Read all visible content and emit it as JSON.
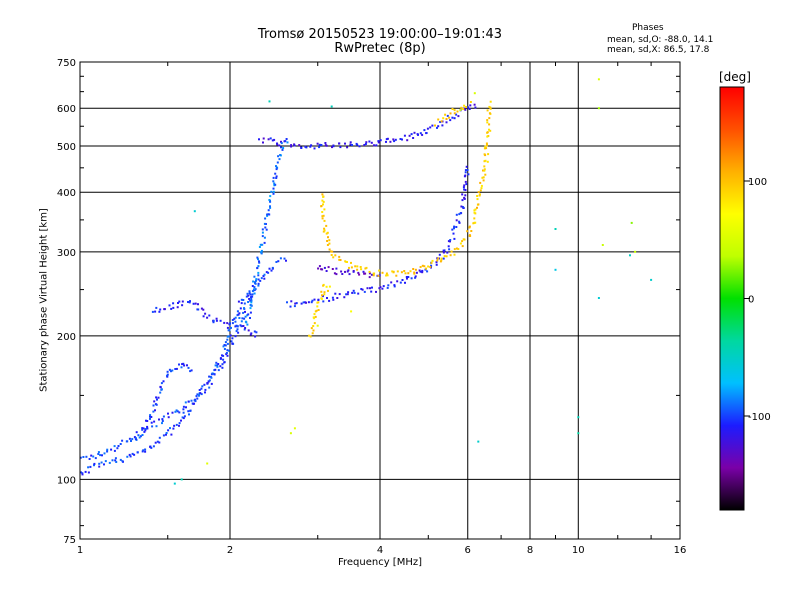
{
  "header": {
    "title": "Tromsø 20150523 19:00:00–19:01:43",
    "subtitle": "RwPretec (8p)"
  },
  "stats": {
    "title": "Phases",
    "o_mode": "mean, sd,O: -88.0, 14.1",
    "x_mode": "mean, sd,X:  86.5, 17.8"
  },
  "colorbar": {
    "label": "[deg]",
    "range": [
      -180,
      180
    ],
    "ticks": [
      -100,
      0,
      100
    ],
    "colors": [
      "#000000",
      "#7a00a8",
      "#1c1cff",
      "#00c0ff",
      "#00d8a0",
      "#00e000",
      "#bfff00",
      "#ffff00",
      "#ffb000",
      "#ff5000",
      "#ff0000"
    ]
  },
  "chart_data": {
    "type": "scatter",
    "title": "Tromsø 20150523 19:00:00–19:01:43",
    "subtitle": "RwPretec (8p)",
    "xlabel": "Frequency [MHz]",
    "ylabel": "Stationary phase Virtual Height [km]",
    "x_scale": "log",
    "y_scale": "log",
    "xlim": [
      1,
      16
    ],
    "ylim": [
      75,
      750
    ],
    "x_ticks": [
      1,
      2,
      4,
      6,
      8,
      10,
      16
    ],
    "x_grid": [
      2,
      4,
      6,
      8,
      10
    ],
    "y_ticks": [
      75,
      100,
      200,
      300,
      400,
      500,
      600,
      750
    ],
    "y_grid": [
      100,
      200,
      300,
      400,
      500,
      600
    ],
    "grid": true,
    "color_by": "phase [deg]",
    "series": [
      {
        "phase": -100,
        "points": [
          [
            1,
            110
          ],
          [
            1.1,
            113
          ],
          [
            1.2,
            118
          ],
          [
            1.3,
            123
          ],
          [
            1.4,
            130
          ],
          [
            1.5,
            135
          ],
          [
            1.6,
            140
          ],
          [
            1.7,
            148
          ],
          [
            1.8,
            158
          ],
          [
            1.9,
            175
          ],
          [
            1.95,
            190
          ],
          [
            2.0,
            205
          ],
          [
            2.05,
            220
          ],
          [
            2.1,
            235
          ],
          [
            2.2,
            250
          ],
          [
            2.3,
            262
          ],
          [
            2.4,
            275
          ],
          [
            2.5,
            285
          ],
          [
            2.6,
            292
          ]
        ]
      },
      {
        "phase": -100,
        "points": [
          [
            1.0,
            103
          ],
          [
            1.1,
            107
          ],
          [
            1.2,
            110
          ],
          [
            1.3,
            113
          ],
          [
            1.4,
            118
          ],
          [
            1.5,
            125
          ],
          [
            1.6,
            133
          ],
          [
            1.7,
            145
          ],
          [
            1.8,
            158
          ],
          [
            1.9,
            170
          ],
          [
            2.0,
            190
          ],
          [
            2.1,
            215
          ],
          [
            2.2,
            240
          ],
          [
            2.3,
            265
          ]
        ]
      },
      {
        "phase": -100,
        "points": [
          [
            1.3,
            122
          ],
          [
            1.4,
            138
          ],
          [
            1.45,
            155
          ],
          [
            1.5,
            168
          ],
          [
            1.55,
            172
          ],
          [
            1.6,
            175
          ],
          [
            1.65,
            170
          ],
          [
            1.7,
            168
          ]
        ]
      },
      {
        "phase": -110,
        "points": [
          [
            1.4,
            225
          ],
          [
            1.5,
            230
          ],
          [
            1.6,
            235
          ],
          [
            1.7,
            233
          ],
          [
            1.8,
            220
          ],
          [
            1.9,
            213
          ],
          [
            2.0,
            210
          ],
          [
            2.1,
            208
          ],
          [
            2.2,
            205
          ],
          [
            2.3,
            200
          ]
        ]
      },
      {
        "phase": -110,
        "points": [
          [
            2.6,
            232
          ],
          [
            3.0,
            238
          ],
          [
            3.5,
            245
          ],
          [
            4.0,
            252
          ],
          [
            4.5,
            262
          ],
          [
            5.0,
            277
          ],
          [
            5.3,
            292
          ],
          [
            5.5,
            310
          ],
          [
            5.7,
            340
          ],
          [
            5.85,
            375
          ],
          [
            5.95,
            420
          ],
          [
            6.0,
            460
          ]
        ]
      },
      {
        "phase": -115,
        "points": [
          [
            2.3,
            515
          ],
          [
            2.6,
            505
          ],
          [
            3.0,
            500
          ],
          [
            3.5,
            502
          ],
          [
            4.0,
            508
          ],
          [
            4.5,
            520
          ],
          [
            5.0,
            540
          ],
          [
            5.3,
            560
          ],
          [
            5.6,
            580
          ],
          [
            6.0,
            600
          ],
          [
            6.3,
            610
          ]
        ]
      },
      {
        "phase": -90,
        "points": [
          [
            2.15,
            210
          ],
          [
            2.2,
            230
          ],
          [
            2.25,
            260
          ],
          [
            2.3,
            300
          ],
          [
            2.35,
            330
          ],
          [
            2.4,
            380
          ],
          [
            2.45,
            420
          ],
          [
            2.5,
            470
          ],
          [
            2.55,
            500
          ],
          [
            2.6,
            520
          ]
        ]
      },
      {
        "phase": -130,
        "points": [
          [
            3.0,
            280
          ],
          [
            3.2,
            275
          ],
          [
            3.5,
            270
          ],
          [
            4.0,
            268
          ]
        ]
      },
      {
        "phase": 95,
        "points": [
          [
            3.05,
            400
          ],
          [
            3.1,
            340
          ],
          [
            3.2,
            300
          ],
          [
            3.4,
            285
          ],
          [
            3.7,
            275
          ],
          [
            4.0,
            270
          ],
          [
            4.5,
            270
          ],
          [
            5.0,
            280
          ],
          [
            5.5,
            295
          ],
          [
            6.0,
            320
          ],
          [
            6.3,
            380
          ],
          [
            6.5,
            450
          ],
          [
            6.6,
            530
          ],
          [
            6.65,
            620
          ]
        ]
      },
      {
        "phase": 90,
        "points": [
          [
            2.9,
            200
          ],
          [
            2.95,
            215
          ],
          [
            3.0,
            230
          ],
          [
            3.05,
            245
          ],
          [
            3.1,
            255
          ],
          [
            3.2,
            250
          ]
        ]
      },
      {
        "phase": 95,
        "points": [
          [
            5.2,
            560
          ],
          [
            5.5,
            580
          ],
          [
            5.8,
            600
          ],
          [
            6.1,
            615
          ]
        ]
      },
      {
        "phase": 60,
        "points": [
          [
            2.65,
            125
          ],
          [
            2.7,
            128
          ],
          [
            1.8,
            108
          ],
          [
            3.5,
            225
          ],
          [
            3.0,
            210
          ]
        ]
      },
      {
        "phase": 40,
        "points": [
          [
            6.2,
            645
          ],
          [
            5.8,
            595
          ],
          [
            11.0,
            690
          ],
          [
            11.0,
            600
          ],
          [
            11.2,
            310
          ],
          [
            12.8,
            345
          ],
          [
            13.0,
            300
          ]
        ]
      },
      {
        "phase": -50,
        "points": [
          [
            9.0,
            275
          ],
          [
            12.7,
            295
          ],
          [
            11.0,
            240
          ],
          [
            14.0,
            262
          ],
          [
            9.0,
            335
          ],
          [
            10.0,
            125
          ],
          [
            10.0,
            135
          ],
          [
            6.3,
            120
          ],
          [
            1.6,
            100
          ],
          [
            1.55,
            98
          ],
          [
            1.7,
            365
          ],
          [
            2.4,
            620
          ],
          [
            3.2,
            605
          ]
        ]
      }
    ]
  }
}
